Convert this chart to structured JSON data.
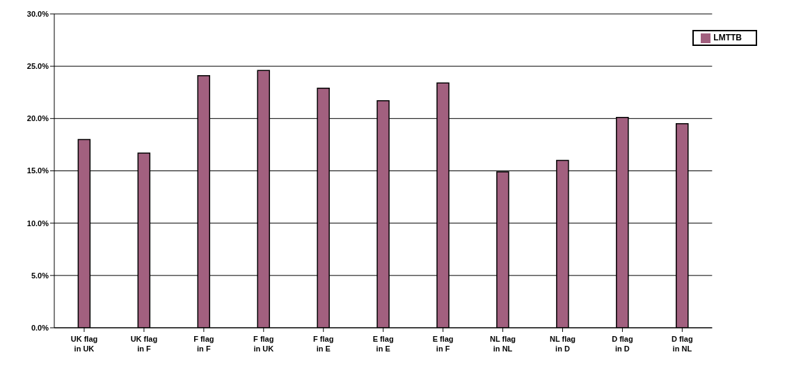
{
  "chart_data": {
    "type": "bar",
    "categories": [
      "UK flag in UK",
      "UK flag in F",
      "F flag in F",
      "F flag in UK",
      "F flag in E",
      "E flag in E",
      "E flag in F",
      "NL flag in NL",
      "NL flag in D",
      "D flag in D",
      "D flag in NL"
    ],
    "series": [
      {
        "name": "LMTTB",
        "color": "#a2607f",
        "values": [
          18.0,
          16.7,
          24.1,
          24.6,
          22.9,
          21.7,
          23.4,
          14.9,
          16.0,
          20.1,
          19.5
        ]
      }
    ],
    "ylim": [
      0,
      30
    ],
    "yticks": [
      {
        "value": 0,
        "label": "0.0%"
      },
      {
        "value": 5,
        "label": "5.0%"
      },
      {
        "value": 10,
        "label": "10.0%"
      },
      {
        "value": 15,
        "label": "15.0%"
      },
      {
        "value": 20,
        "label": "20.0%"
      },
      {
        "value": 25,
        "label": "25.0%"
      },
      {
        "value": 30,
        "label": "30.0%"
      }
    ],
    "grid": "y",
    "legend": "top right"
  }
}
